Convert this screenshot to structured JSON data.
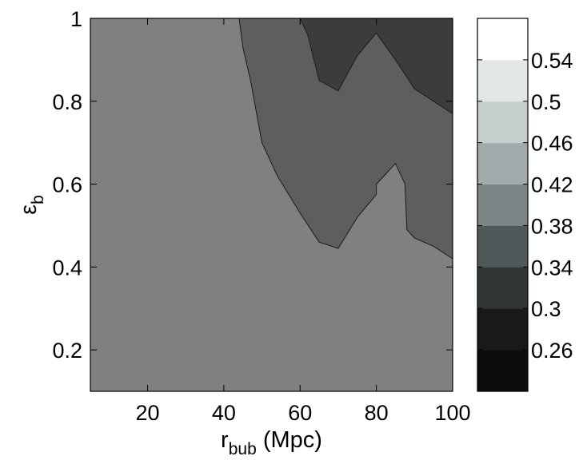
{
  "chart_data": {
    "type": "contour",
    "xlabel": {
      "main": "r",
      "sub": "bub",
      "suffix": " (Mpc)"
    },
    "ylabel": {
      "main": "ε",
      "sub": "b"
    },
    "xlim": [
      5,
      100
    ],
    "ylim": [
      0.1,
      1.0
    ],
    "xticks": [
      20,
      40,
      60,
      80,
      100
    ],
    "yticks": [
      0.2,
      0.4,
      0.6,
      0.8,
      1
    ],
    "ytick_labels": [
      "0.2",
      "0.4",
      "0.6",
      "0.8",
      "1"
    ],
    "regions": [
      {
        "level": 0.38,
        "color": "#808080",
        "polygon": [
          [
            5,
            0.1
          ],
          [
            100,
            0.1
          ],
          [
            100,
            1.0
          ],
          [
            5,
            1.0
          ]
        ]
      },
      {
        "level": 0.34,
        "color": "#5e5e5e",
        "polygon": [
          [
            44,
            1.0
          ],
          [
            45,
            0.93
          ],
          [
            47,
            0.85
          ],
          [
            50,
            0.7
          ],
          [
            54,
            0.62
          ],
          [
            60,
            0.53
          ],
          [
            65,
            0.46
          ],
          [
            70,
            0.445
          ],
          [
            75,
            0.52
          ],
          [
            80,
            0.575
          ],
          [
            80,
            0.6
          ],
          [
            85,
            0.65
          ],
          [
            87.5,
            0.6
          ],
          [
            88,
            0.49
          ],
          [
            90,
            0.47
          ],
          [
            95,
            0.45
          ],
          [
            100,
            0.42
          ],
          [
            100,
            1.0
          ]
        ]
      },
      {
        "level": 0.3,
        "color": "#3c3c3c",
        "polygon": [
          [
            60,
            1.0
          ],
          [
            62,
            0.96
          ],
          [
            65,
            0.85
          ],
          [
            70,
            0.825
          ],
          [
            72,
            0.86
          ],
          [
            75,
            0.91
          ],
          [
            80,
            0.965
          ],
          [
            85,
            0.9
          ],
          [
            90,
            0.83
          ],
          [
            95,
            0.8
          ],
          [
            100,
            0.77
          ],
          [
            100,
            1.0
          ]
        ]
      }
    ],
    "colorbar": {
      "ticks": [
        "0.26",
        "0.3",
        "0.34",
        "0.38",
        "0.42",
        "0.46",
        "0.5",
        "0.54"
      ],
      "bands": [
        {
          "level": 0.24,
          "color": "#0c0c0c"
        },
        {
          "level": 0.28,
          "color": "#181a1a"
        },
        {
          "level": 0.32,
          "color": "#2f3535"
        },
        {
          "level": 0.36,
          "color": "#4f5959"
        },
        {
          "level": 0.4,
          "color": "#7b8585"
        },
        {
          "level": 0.44,
          "color": "#a1abab"
        },
        {
          "level": 0.48,
          "color": "#c6cdcd"
        },
        {
          "level": 0.52,
          "color": "#e2e6e6"
        },
        {
          "level": 0.56,
          "color": "#ffffff"
        }
      ]
    }
  }
}
